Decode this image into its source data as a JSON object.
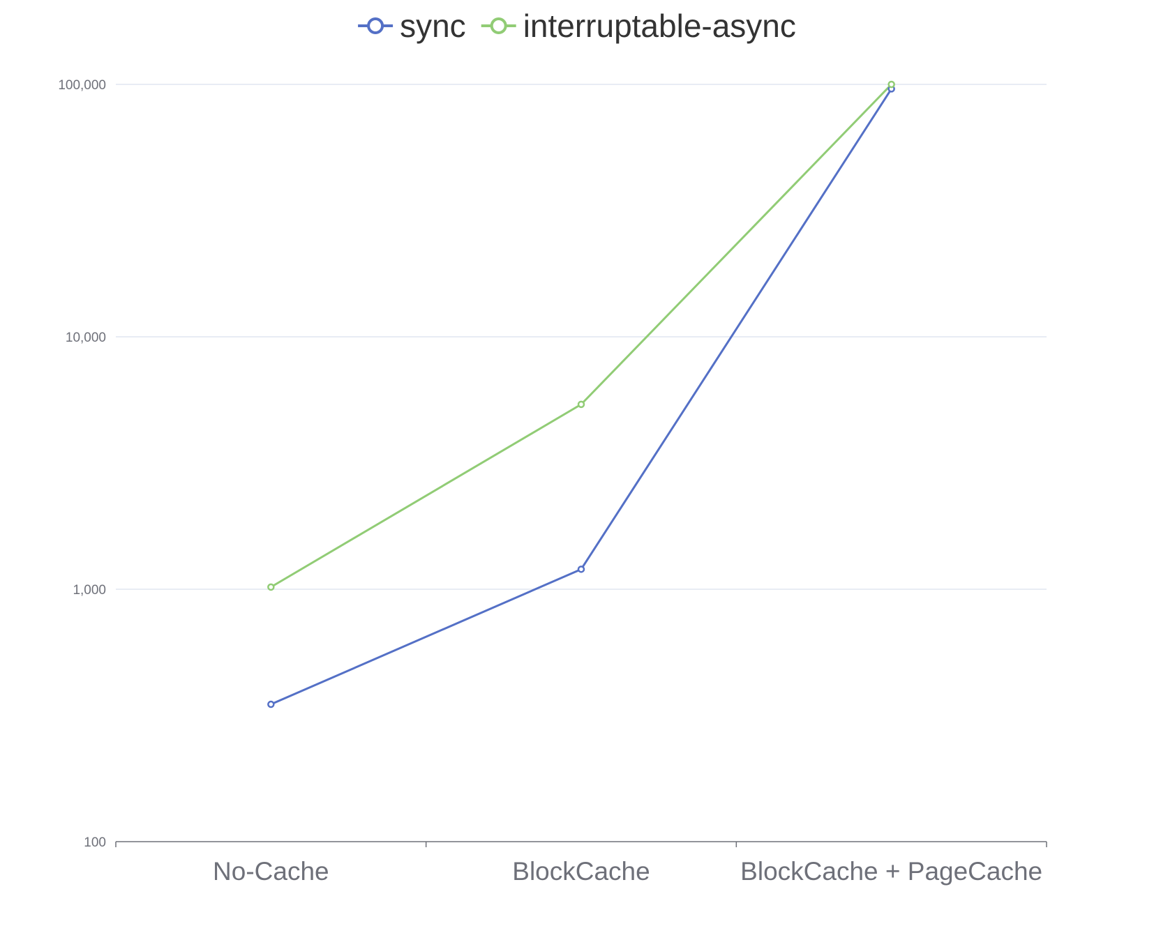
{
  "chart_data": {
    "type": "line",
    "title": "",
    "xlabel": "",
    "ylabel": "",
    "yscale": "log",
    "ylim": [
      100,
      100000
    ],
    "y_ticks": [
      100,
      1000,
      10000,
      100000
    ],
    "y_tick_labels": [
      "100",
      "1,000",
      "10,000",
      "100,000"
    ],
    "categories": [
      "No-Cache",
      "BlockCache",
      "BlockCache + PageCache"
    ],
    "grid": true,
    "legend_position": "top-center",
    "series": [
      {
        "name": "sync",
        "color": "#5470c6",
        "values": [
          350,
          1200,
          96000
        ]
      },
      {
        "name": "interruptable-async",
        "color": "#91cc75",
        "values": [
          1020,
          5400,
          100000
        ]
      }
    ]
  }
}
